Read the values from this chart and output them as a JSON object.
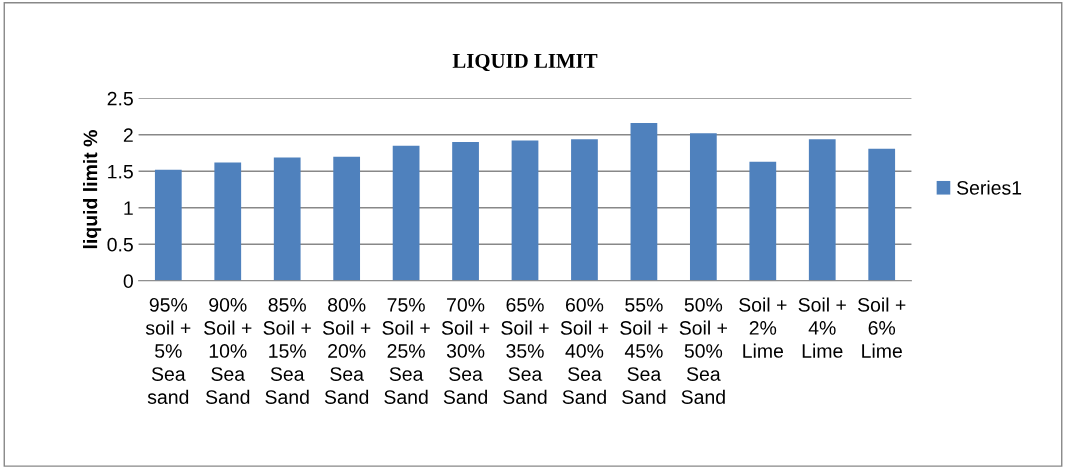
{
  "chart_data": {
    "type": "bar",
    "title": "LIQUID LIMIT",
    "ylabel": "liquid limit %",
    "categories": [
      "95%\nsoil +\n5%\nSea\nsand",
      "90%\nSoil +\n10%\nSea\nSand",
      "85%\nSoil +\n15%\nSea\nSand",
      "80%\nSoil +\n20%\nSea\nSand",
      "75%\nSoil +\n25%\nSea\nSand",
      "70%\nSoil +\n30%\nSea\nSand",
      "65%\nSoil +\n35%\nSea\nSand",
      "60%\nSoil +\n40%\nSea\nSand",
      "55%\nSoil +\n45%\nSea\nSand",
      "50%\nSoil +\n50%\nSea\nSand",
      "Soil +\n2%\nLime",
      "Soil +\n4%\nLime",
      "Soil +\n6%\nLime"
    ],
    "series": [
      {
        "name": "Series1",
        "color": "#4f81bd",
        "values": [
          1.52,
          1.62,
          1.69,
          1.7,
          1.85,
          1.9,
          1.92,
          1.94,
          2.16,
          2.02,
          1.63,
          1.94,
          1.81
        ]
      }
    ],
    "ylim": [
      0,
      2.5
    ],
    "yticks": [
      0,
      0.5,
      1,
      1.5,
      2,
      2.5
    ],
    "grid": "y",
    "legend": "right"
  }
}
